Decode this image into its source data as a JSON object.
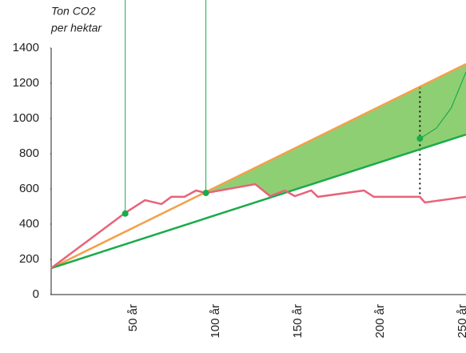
{
  "chart_data": {
    "type": "line",
    "ylabel": [
      "Ton CO2",
      "per hektar"
    ],
    "xlim": [
      0,
      252
    ],
    "ylim": [
      0,
      1400
    ],
    "yticks": [
      0,
      200,
      400,
      600,
      800,
      1000,
      1200,
      1400
    ],
    "xticks": [
      {
        "value": 50,
        "label": "50 år"
      },
      {
        "value": 100,
        "label": "100 år"
      },
      {
        "value": 150,
        "label": "150 år"
      },
      {
        "value": 200,
        "label": "200 år"
      },
      {
        "value": 250,
        "label": "250 år"
      }
    ],
    "series": [
      {
        "color": "#f4a04a",
        "x": [
          0,
          252
        ],
        "values": [
          150,
          1309
        ]
      },
      {
        "color": "#1aab4a",
        "x": [
          0,
          252
        ],
        "values": [
          150,
          909
        ]
      },
      {
        "color": "#e8637a",
        "x": [
          0,
          45,
          57,
          67,
          73,
          81,
          88,
          94,
          124,
          133,
          142,
          148,
          158,
          162,
          190,
          196,
          224,
          227,
          252
        ],
        "values": [
          150,
          464,
          536,
          514,
          555,
          555,
          591,
          577,
          627,
          559,
          591,
          559,
          591,
          555,
          591,
          555,
          555,
          523,
          555
        ]
      },
      {
        "color": "#1aab4a",
        "x": [
          224,
          234,
          243,
          252
        ],
        "values": [
          886,
          945,
          1059,
          1264
        ]
      }
    ],
    "points": {
      "color": "#1aab4a",
      "x": [
        45,
        94,
        224
      ],
      "values": [
        460,
        577,
        886
      ]
    }
  }
}
